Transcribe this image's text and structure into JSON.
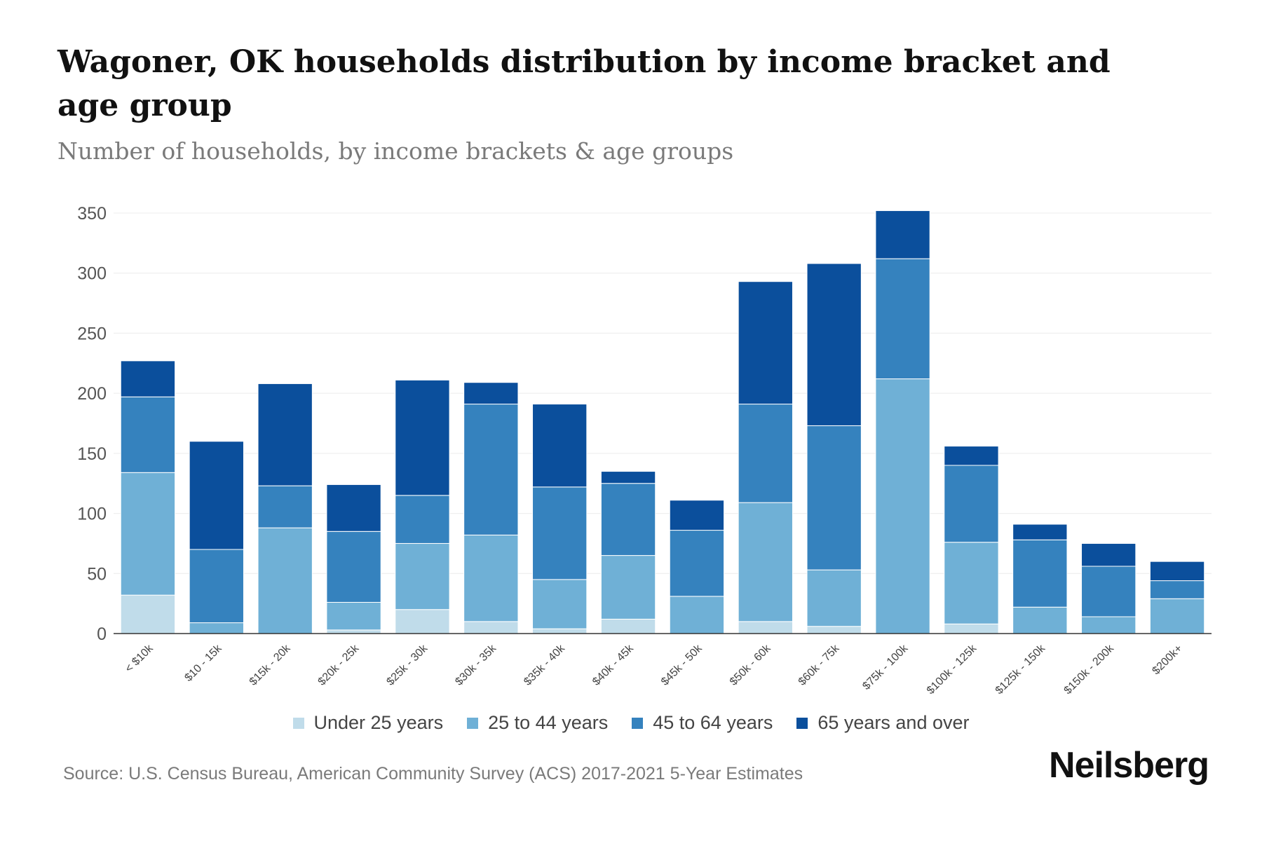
{
  "chart_data": {
    "type": "bar",
    "stacked": true,
    "title": "Wagoner, OK households distribution by income bracket and age group",
    "subtitle": "Number of households, by income brackets & age groups",
    "xlabel": "",
    "ylabel": "",
    "ylim": [
      0,
      350
    ],
    "yticks": [
      0,
      50,
      100,
      150,
      200,
      250,
      300,
      350
    ],
    "grid": true,
    "legend_position": "bottom",
    "categories": [
      "< $10k",
      "$10 - 15k",
      "$15k - 20k",
      "$20k - 25k",
      "$25k - 30k",
      "$30k - 35k",
      "$35k - 40k",
      "$40k - 45k",
      "$45k - 50k",
      "$50k - 60k",
      "$60k - 75k",
      "$75k - 100k",
      "$100k - 125k",
      "$125k - 150k",
      "$150k - 200k",
      "$200k+"
    ],
    "series": [
      {
        "name": "Under 25 years",
        "color": "#c0dcea",
        "values": [
          32,
          0,
          0,
          3,
          20,
          10,
          4,
          12,
          0,
          10,
          6,
          0,
          8,
          0,
          0,
          0
        ]
      },
      {
        "name": "25 to 44 years",
        "color": "#6fb0d6",
        "values": [
          102,
          9,
          88,
          23,
          55,
          72,
          41,
          53,
          31,
          99,
          47,
          212,
          68,
          22,
          14,
          29
        ]
      },
      {
        "name": "45 to 64 years",
        "color": "#3582be",
        "values": [
          63,
          61,
          35,
          59,
          40,
          109,
          77,
          60,
          55,
          82,
          120,
          100,
          64,
          56,
          42,
          15
        ]
      },
      {
        "name": "65 years and over",
        "color": "#0b4f9c",
        "values": [
          30,
          90,
          85,
          39,
          96,
          18,
          69,
          10,
          25,
          102,
          135,
          40,
          16,
          13,
          19,
          16
        ]
      }
    ]
  },
  "source": "Source: U.S. Census Bureau, American Community Survey (ACS) 2017-2021 5-Year Estimates",
  "brand": "Neilsberg"
}
